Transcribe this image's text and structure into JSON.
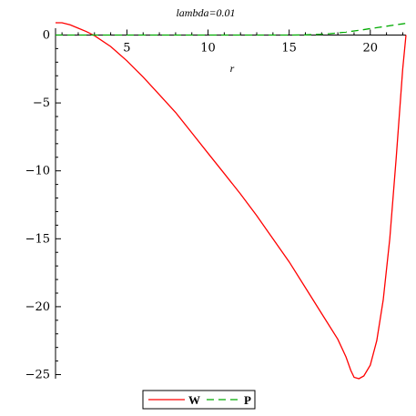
{
  "chart_data": {
    "type": "line",
    "title": "lambda=0.01",
    "xlabel": "r",
    "ylabel": "",
    "xlim": [
      0.6,
      22.2
    ],
    "ylim": [
      -25.3,
      0.5
    ],
    "xticks": [
      5,
      10,
      15,
      20
    ],
    "yticks": [
      0,
      -5,
      -10,
      -15,
      -20,
      -25
    ],
    "grid": false,
    "legend_position": "bottom",
    "series": [
      {
        "name": "W",
        "color": "#ff0000",
        "style": "solid",
        "x": [
          0.6,
          1.0,
          1.5,
          2.0,
          2.5,
          3.0,
          4.0,
          5.0,
          6.0,
          7.0,
          8.0,
          9.0,
          10.0,
          11.0,
          12.0,
          13.0,
          14.0,
          15.0,
          16.0,
          17.0,
          18.0,
          18.5,
          18.8,
          19.0,
          19.3,
          19.6,
          20.0,
          20.4,
          20.8,
          21.2,
          21.6,
          22.0,
          22.2
        ],
        "y": [
          0.9,
          0.9,
          0.75,
          0.5,
          0.25,
          -0.05,
          -0.85,
          -1.9,
          -3.1,
          -4.4,
          -5.7,
          -7.2,
          -8.7,
          -10.2,
          -11.7,
          -13.3,
          -15.0,
          -16.7,
          -18.6,
          -20.5,
          -22.4,
          -23.7,
          -24.7,
          -25.2,
          -25.3,
          -25.1,
          -24.3,
          -22.5,
          -19.5,
          -15.0,
          -9.0,
          -2.5,
          0.0
        ]
      },
      {
        "name": "P",
        "color": "#00aa00",
        "style": "dashed",
        "x": [
          0.6,
          2.0,
          4.0,
          6.0,
          8.0,
          10.0,
          12.0,
          14.0,
          15.0,
          16.0,
          16.5,
          17.0,
          17.5,
          18.0,
          18.5,
          19.0,
          19.5,
          20.0,
          20.5,
          21.0,
          21.5,
          22.0,
          22.2
        ],
        "y": [
          0,
          0,
          0,
          0,
          0,
          0,
          0,
          0,
          0,
          0.01,
          0.03,
          0.06,
          0.1,
          0.15,
          0.22,
          0.3,
          0.38,
          0.47,
          0.56,
          0.65,
          0.74,
          0.82,
          0.86
        ]
      }
    ]
  }
}
